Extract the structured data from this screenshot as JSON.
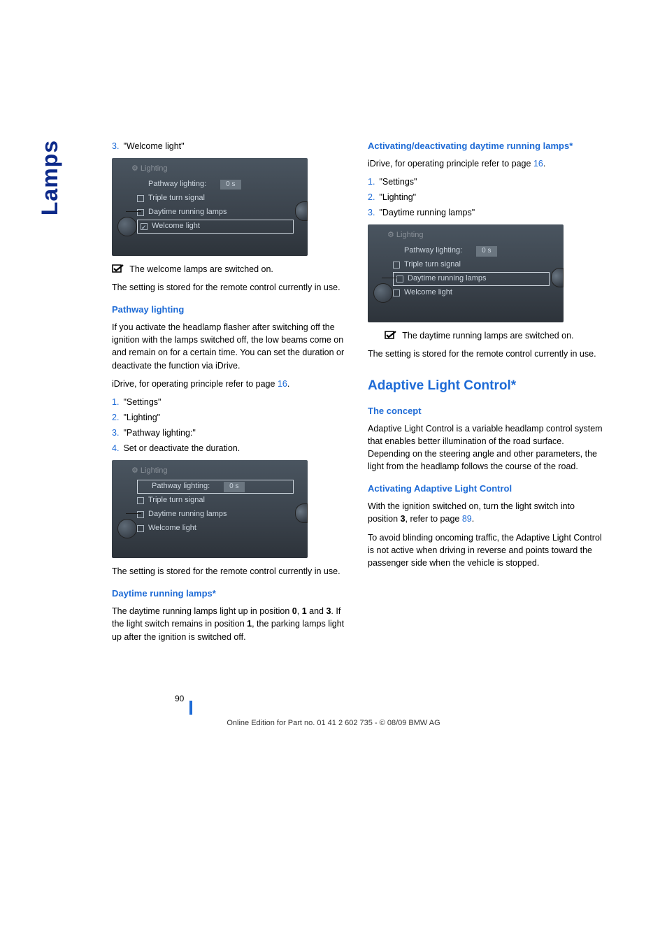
{
  "side_tab": "Lamps",
  "colors": {
    "accent": "#1e6bd6",
    "side": "#0d2a8a"
  },
  "left": {
    "step3": {
      "num": "3.",
      "text": "\"Welcome light\""
    },
    "ss1": {
      "header": "Lighting",
      "rows": [
        {
          "label": "Pathway lighting:",
          "val": "0 s",
          "check": "none",
          "hl": false
        },
        {
          "label": "Triple turn signal",
          "val": "",
          "check": "empty",
          "hl": false
        },
        {
          "label": "Daytime running lamps",
          "val": "",
          "check": "empty",
          "hl": false
        },
        {
          "label": "Welcome light",
          "val": "",
          "check": "filled",
          "hl": true
        }
      ]
    },
    "ss1_caption_icon": "checkbox-checked-icon",
    "ss1_caption": "The welcome lamps are switched on.",
    "stored": "The setting is stored for the remote control currently in use.",
    "pathway": {
      "title": "Pathway lighting",
      "body": "If you activate the headlamp flasher after switching off the ignition with the lamps switched off, the low beams come on and remain on for a certain time. You can set the duration or deactivate the function via iDrive.",
      "idrive": "iDrive, for operating principle refer to page ",
      "idrive_page": "16",
      "steps": [
        {
          "num": "1.",
          "text": "\"Settings\""
        },
        {
          "num": "2.",
          "text": "\"Lighting\""
        },
        {
          "num": "3.",
          "text": "\"Pathway lighting:\""
        },
        {
          "num": "4.",
          "text": "Set or deactivate the duration."
        }
      ],
      "ss2": {
        "header": "Lighting",
        "rows": [
          {
            "label": "Pathway lighting:",
            "val": "0 s",
            "check": "none",
            "hl": true
          },
          {
            "label": "Triple turn signal",
            "val": "",
            "check": "empty",
            "hl": false
          },
          {
            "label": "Daytime running lamps",
            "val": "",
            "check": "empty",
            "hl": false
          },
          {
            "label": "Welcome light",
            "val": "",
            "check": "empty",
            "hl": false
          }
        ]
      },
      "stored2": "The setting is stored for the remote control currently in use."
    },
    "daytime": {
      "title": "Daytime running lamps*",
      "body": "The daytime running lamps light up in position 0, 1 and 3. If the light switch remains in position 1, the parking lamps light up after the ignition is switched off."
    }
  },
  "right": {
    "activating": {
      "title": "Activating/deactivating daytime running lamps*",
      "idrive": "iDrive, for operating principle refer to page ",
      "idrive_page": "16",
      "steps": [
        {
          "num": "1.",
          "text": "\"Settings\""
        },
        {
          "num": "2.",
          "text": "\"Lighting\""
        },
        {
          "num": "3.",
          "text": "\"Daytime running lamps\""
        }
      ],
      "ss3": {
        "header": "Lighting",
        "rows": [
          {
            "label": "Pathway lighting:",
            "val": "0 s",
            "check": "none",
            "hl": false
          },
          {
            "label": "Triple turn signal",
            "val": "",
            "check": "empty",
            "hl": false
          },
          {
            "label": "Daytime running lamps",
            "val": "",
            "check": "empty",
            "hl": true
          },
          {
            "label": "Welcome light",
            "val": "",
            "check": "empty",
            "hl": false
          }
        ]
      },
      "caption": "The daytime running lamps are switched on.",
      "stored": "The setting is stored for the remote control currently in use."
    },
    "adaptive": {
      "title": "Adaptive Light Control*",
      "concept_h": "The concept",
      "concept": "Adaptive Light Control is a variable headlamp control system that enables better illumination of the road surface. Depending on the steering angle and other parameters, the light from the headlamp follows the course of the road.",
      "act_h": "Activating Adaptive Light Control",
      "act1a": "With the ignition switched on, turn the light switch into position ",
      "act1b": "3",
      "act1c": ", refer to page ",
      "act1_page": "89",
      "act2": "To avoid blinding oncoming traffic, the Adaptive Light Control is not active when driving in reverse and points toward the passenger side when the vehicle is stopped."
    }
  },
  "page_num": "90",
  "footer": "Online Edition for Part no. 01 41 2 602 735 - © 08/09 BMW AG"
}
